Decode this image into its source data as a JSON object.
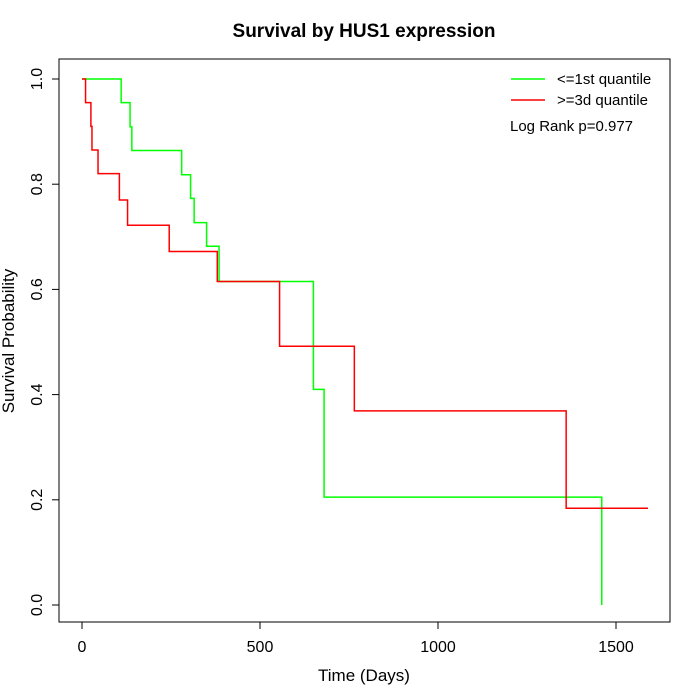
{
  "chart_data": {
    "type": "line",
    "title": "Survival by HUS1 expression",
    "xlabel": "Time (Days)",
    "ylabel": "Survival Probability",
    "xlim": [
      0,
      1590
    ],
    "ylim": [
      0,
      1
    ],
    "xticks": [
      0,
      500,
      1000,
      1500
    ],
    "yticks": [
      0.0,
      0.2,
      0.4,
      0.6,
      0.8,
      1.0
    ],
    "xtick_labels": [
      "0",
      "500",
      "1000",
      "1500"
    ],
    "ytick_labels": [
      "0.0",
      "0.2",
      "0.4",
      "0.6",
      "0.8",
      "1.0"
    ],
    "grid": false,
    "legend_position": "top-right",
    "annotation": "Log Rank p=0.977",
    "series": [
      {
        "name": "<=1st quantile",
        "color": "#00ff00",
        "x": [
          0,
          110,
          135,
          140,
          280,
          305,
          315,
          350,
          385,
          650,
          680,
          1460,
          1460
        ],
        "y": [
          1.0,
          0.955,
          0.909,
          0.864,
          0.818,
          0.773,
          0.727,
          0.682,
          0.615,
          0.41,
          0.205,
          0.205,
          0.0
        ]
      },
      {
        "name": ">=3d quantile",
        "color": "#ff0000",
        "x": [
          0,
          10,
          25,
          28,
          45,
          105,
          128,
          245,
          380,
          555,
          765,
          1360,
          1590
        ],
        "y": [
          1.0,
          0.955,
          0.91,
          0.865,
          0.82,
          0.77,
          0.722,
          0.672,
          0.615,
          0.492,
          0.369,
          0.184,
          0.184
        ]
      }
    ]
  }
}
